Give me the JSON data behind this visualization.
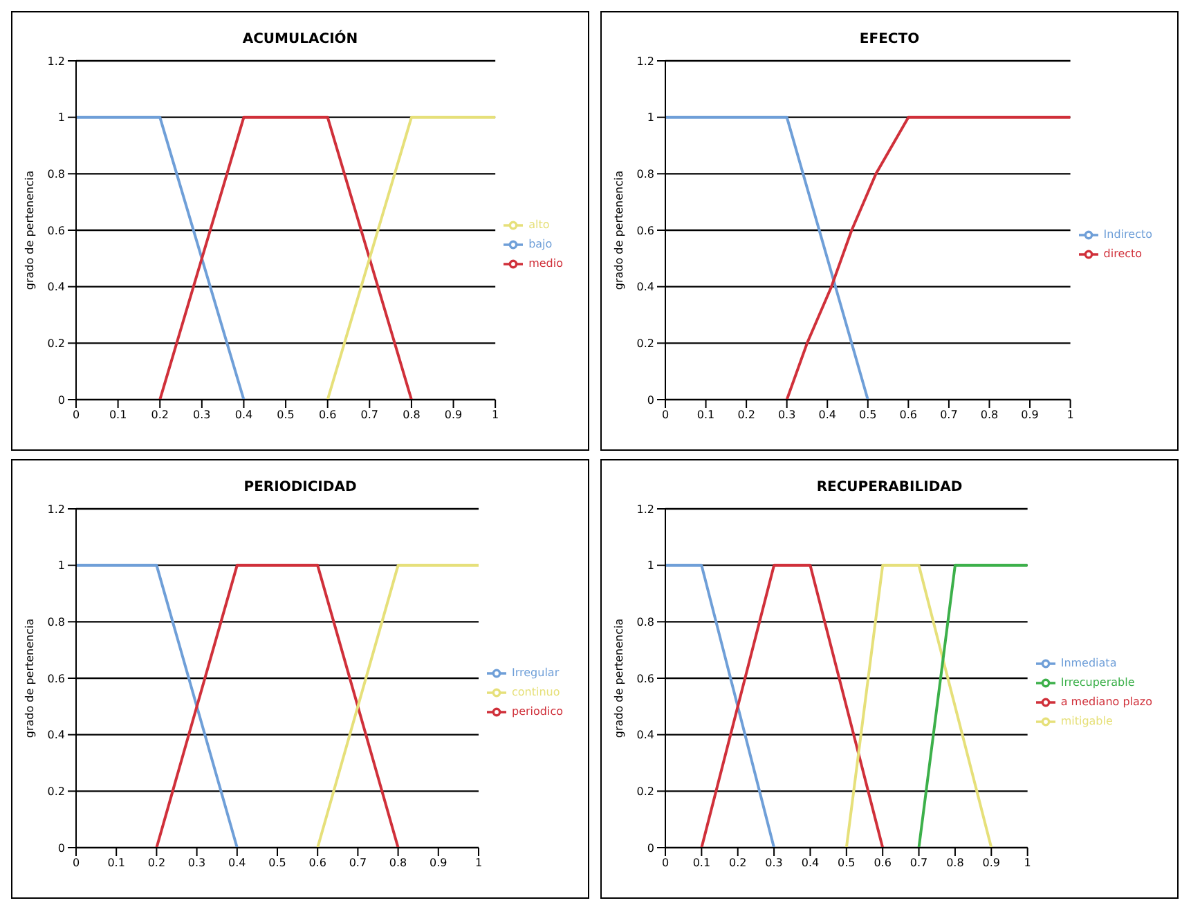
{
  "chart_data": [
    {
      "type": "line",
      "title": "ACUMULACIÓN",
      "ylabel": "grado de pertenencia",
      "xlim": [
        0,
        1
      ],
      "xticks": [
        0,
        0.1,
        0.2,
        0.3,
        0.4,
        0.5,
        0.6,
        0.7,
        0.8,
        0.9,
        1
      ],
      "ylim": [
        0,
        1.2
      ],
      "yticks": [
        0,
        0.2,
        0.4,
        0.6,
        0.8,
        1,
        1.2
      ],
      "grid": "y",
      "legend": "right",
      "marker": "none",
      "line_style": "solid",
      "series": [
        {
          "name": "bajo",
          "color": "#6f9fd8",
          "x": [
            0,
            0.2,
            0.4
          ],
          "values": [
            1,
            1,
            0
          ]
        },
        {
          "name": "medio",
          "color": "#d0303a",
          "x": [
            0.2,
            0.4,
            0.6,
            0.8
          ],
          "values": [
            0,
            1,
            1,
            0
          ]
        },
        {
          "name": "alto",
          "color": "#e6e07a",
          "x": [
            0.6,
            0.8,
            1
          ],
          "values": [
            0,
            1,
            1
          ]
        }
      ]
    },
    {
      "type": "line",
      "title": "EFECTO",
      "ylabel": "grado de pertenencia",
      "xlim": [
        0,
        1
      ],
      "xticks": [
        0,
        0.1,
        0.2,
        0.3,
        0.4,
        0.5,
        0.6,
        0.7,
        0.8,
        0.9,
        1
      ],
      "ylim": [
        0,
        1.2
      ],
      "yticks": [
        0,
        0.2,
        0.4,
        0.6,
        0.8,
        1,
        1.2
      ],
      "grid": "y",
      "legend": "right",
      "marker": "none",
      "line_style": "solid",
      "series": [
        {
          "name": "Indirecto",
          "color": "#6f9fd8",
          "x": [
            0,
            0.3,
            0.5
          ],
          "values": [
            1,
            1,
            0
          ]
        },
        {
          "name": "directo",
          "color": "#d0303a",
          "x": [
            0.3,
            0.35,
            0.41,
            0.46,
            0.52,
            0.6,
            1
          ],
          "values": [
            0,
            0.2,
            0.4,
            0.6,
            0.8,
            1,
            1
          ]
        }
      ]
    },
    {
      "type": "line",
      "title": "PERIODICIDAD",
      "ylabel": "grado de pertenencia",
      "xlim": [
        0,
        1
      ],
      "xticks": [
        0,
        0.1,
        0.2,
        0.3,
        0.4,
        0.5,
        0.6,
        0.7,
        0.8,
        0.9,
        1
      ],
      "ylim": [
        0,
        1.2
      ],
      "yticks": [
        0,
        0.2,
        0.4,
        0.6,
        0.8,
        1,
        1.2
      ],
      "grid": "y",
      "legend": "right",
      "marker": "none",
      "line_style": "solid",
      "series": [
        {
          "name": "Irregular",
          "color": "#6f9fd8",
          "x": [
            0,
            0.2,
            0.4
          ],
          "values": [
            1,
            1,
            0
          ]
        },
        {
          "name": "periodico",
          "color": "#d0303a",
          "x": [
            0.2,
            0.4,
            0.6,
            0.8
          ],
          "values": [
            0,
            1,
            1,
            0
          ]
        },
        {
          "name": "continuo",
          "color": "#e6e07a",
          "x": [
            0.6,
            0.8,
            1
          ],
          "values": [
            0,
            1,
            1
          ]
        }
      ]
    },
    {
      "type": "line",
      "title": "RECUPERABILIDAD",
      "ylabel": "grado de pertenencia",
      "xlim": [
        0,
        1
      ],
      "xticks": [
        0,
        0.1,
        0.2,
        0.3,
        0.4,
        0.5,
        0.6,
        0.7,
        0.8,
        0.9,
        1
      ],
      "ylim": [
        0,
        1.2
      ],
      "yticks": [
        0,
        0.2,
        0.4,
        0.6,
        0.8,
        1,
        1.2
      ],
      "grid": "y",
      "legend": "right",
      "marker": "none",
      "line_style": "solid",
      "series": [
        {
          "name": "Inmediata",
          "color": "#6f9fd8",
          "x": [
            0,
            0.1,
            0.3
          ],
          "values": [
            1,
            1,
            0
          ]
        },
        {
          "name": "a mediano plazo",
          "color": "#d0303a",
          "x": [
            0.1,
            0.3,
            0.4,
            0.6
          ],
          "values": [
            0,
            1,
            1,
            0
          ]
        },
        {
          "name": "mitigable",
          "color": "#e6e07a",
          "x": [
            0.5,
            0.6,
            0.7,
            0.9
          ],
          "values": [
            0,
            1,
            1,
            0
          ]
        },
        {
          "name": "Irrecuperable",
          "color": "#3cb04a",
          "x": [
            0.7,
            0.8,
            1
          ],
          "values": [
            0,
            1,
            1
          ]
        }
      ]
    }
  ]
}
